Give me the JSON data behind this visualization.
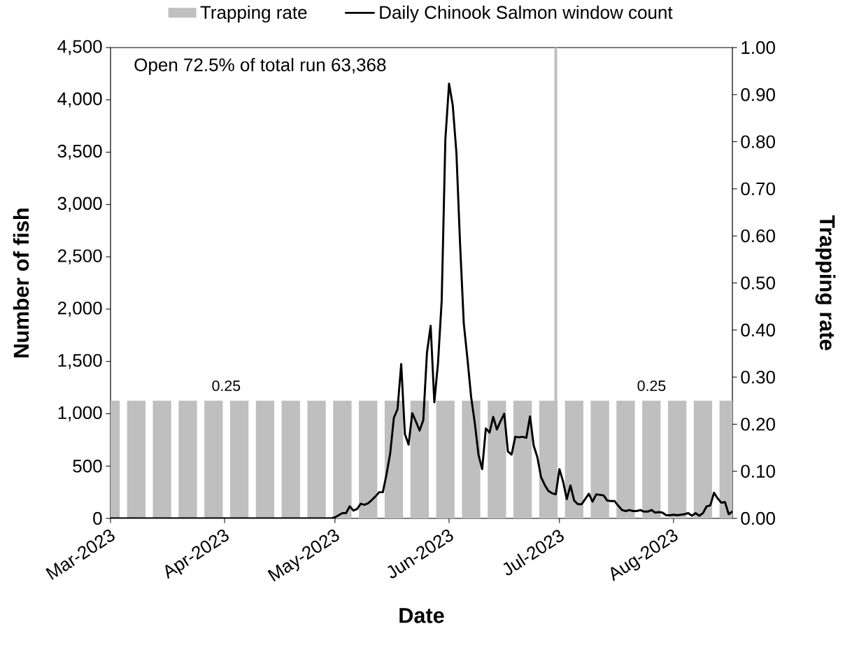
{
  "chart_data": {
    "type": "line",
    "xlabel": "Date",
    "ylabel": "Number of fish",
    "y2label": "Trapping rate",
    "annotations": [
      "Open 72.5% of total run 63,368",
      "0.25",
      "0.25"
    ],
    "x": [
      "2023-03-01",
      "2023-03-02",
      "2023-03-03",
      "2023-03-04",
      "2023-03-05",
      "2023-03-06",
      "2023-03-07",
      "2023-03-08",
      "2023-03-09",
      "2023-03-10",
      "2023-03-11",
      "2023-03-12",
      "2023-03-13",
      "2023-03-14",
      "2023-03-15",
      "2023-03-16",
      "2023-03-17",
      "2023-03-18",
      "2023-03-19",
      "2023-03-20",
      "2023-03-21",
      "2023-03-22",
      "2023-03-23",
      "2023-03-24",
      "2023-03-25",
      "2023-03-26",
      "2023-03-27",
      "2023-03-28",
      "2023-03-29",
      "2023-03-30",
      "2023-03-31",
      "2023-04-01",
      "2023-04-02",
      "2023-04-03",
      "2023-04-04",
      "2023-04-05",
      "2023-04-06",
      "2023-04-07",
      "2023-04-08",
      "2023-04-09",
      "2023-04-10",
      "2023-04-11",
      "2023-04-12",
      "2023-04-13",
      "2023-04-14",
      "2023-04-15",
      "2023-04-16",
      "2023-04-17",
      "2023-04-18",
      "2023-04-19",
      "2023-04-20",
      "2023-04-21",
      "2023-04-22",
      "2023-04-23",
      "2023-04-24",
      "2023-04-25",
      "2023-04-26",
      "2023-04-27",
      "2023-04-28",
      "2023-04-29",
      "2023-04-30",
      "2023-05-01",
      "2023-05-02",
      "2023-05-03",
      "2023-05-04",
      "2023-05-05",
      "2023-05-06",
      "2023-05-07",
      "2023-05-08",
      "2023-05-09",
      "2023-05-10",
      "2023-05-11",
      "2023-05-12",
      "2023-05-13",
      "2023-05-14",
      "2023-05-15",
      "2023-05-16",
      "2023-05-17",
      "2023-05-18",
      "2023-05-19",
      "2023-05-20",
      "2023-05-21",
      "2023-05-22",
      "2023-05-23",
      "2023-05-24",
      "2023-05-25",
      "2023-05-26",
      "2023-05-27",
      "2023-05-28",
      "2023-05-29",
      "2023-05-30",
      "2023-05-31",
      "2023-06-01",
      "2023-06-02",
      "2023-06-03",
      "2023-06-04",
      "2023-06-05",
      "2023-06-06",
      "2023-06-07",
      "2023-06-08",
      "2023-06-09",
      "2023-06-10",
      "2023-06-11",
      "2023-06-12",
      "2023-06-13",
      "2023-06-14",
      "2023-06-15",
      "2023-06-16",
      "2023-06-17",
      "2023-06-18",
      "2023-06-19",
      "2023-06-20",
      "2023-06-21",
      "2023-06-22",
      "2023-06-23",
      "2023-06-24",
      "2023-06-25",
      "2023-06-26",
      "2023-06-27",
      "2023-06-28",
      "2023-06-29",
      "2023-06-30",
      "2023-07-01",
      "2023-07-02",
      "2023-07-03",
      "2023-07-04",
      "2023-07-05",
      "2023-07-06",
      "2023-07-07",
      "2023-07-08",
      "2023-07-09",
      "2023-07-10",
      "2023-07-11",
      "2023-07-12",
      "2023-07-13",
      "2023-07-14",
      "2023-07-15",
      "2023-07-16",
      "2023-07-17",
      "2023-07-18",
      "2023-07-19",
      "2023-07-20",
      "2023-07-21",
      "2023-07-22",
      "2023-07-23",
      "2023-07-24",
      "2023-07-25",
      "2023-07-26",
      "2023-07-27",
      "2023-07-28",
      "2023-07-29",
      "2023-07-30",
      "2023-07-31",
      "2023-08-01",
      "2023-08-02",
      "2023-08-03",
      "2023-08-04",
      "2023-08-05",
      "2023-08-06",
      "2023-08-07",
      "2023-08-08",
      "2023-08-09",
      "2023-08-10",
      "2023-08-11",
      "2023-08-12",
      "2023-08-13",
      "2023-08-14",
      "2023-08-15",
      "2023-08-16",
      "2023-08-17"
    ],
    "series": [
      {
        "name": "Trapping rate",
        "type": "bar",
        "axis": "y2",
        "color": "#bfbfbf",
        "x": [
          "2023-03-01",
          "2023-03-08",
          "2023-03-15",
          "2023-03-22",
          "2023-03-29",
          "2023-04-05",
          "2023-04-12",
          "2023-04-19",
          "2023-04-26",
          "2023-05-03",
          "2023-05-10",
          "2023-05-17",
          "2023-05-24",
          "2023-05-31",
          "2023-06-07",
          "2023-06-14",
          "2023-06-21",
          "2023-06-28",
          "2023-07-05",
          "2023-07-12",
          "2023-07-19",
          "2023-07-26",
          "2023-08-02",
          "2023-08-09",
          "2023-08-16"
        ],
        "values": [
          0.25,
          0.25,
          0.25,
          0.25,
          0.25,
          0.25,
          0.25,
          0.25,
          0.25,
          0.25,
          0.25,
          0.25,
          0.25,
          0.25,
          0.25,
          0.25,
          0.25,
          0.25,
          0.25,
          0.25,
          0.25,
          0.25,
          0.25,
          0.25,
          0.25
        ]
      },
      {
        "name": "Daily Chinook Salmon window count",
        "color": "#000000",
        "values": [
          0,
          0,
          0,
          0,
          0,
          0,
          0,
          0,
          0,
          0,
          0,
          0,
          0,
          0,
          0,
          0,
          0,
          0,
          0,
          0,
          0,
          0,
          0,
          0,
          0,
          0,
          0,
          0,
          0,
          0,
          0,
          0,
          0,
          0,
          0,
          0,
          0,
          0,
          0,
          0,
          0,
          0,
          0,
          0,
          0,
          0,
          0,
          0,
          0,
          0,
          0,
          0,
          0,
          0,
          0,
          0,
          0,
          0,
          0,
          0,
          0,
          10,
          30,
          50,
          50,
          115,
          75,
          90,
          140,
          130,
          145,
          175,
          210,
          250,
          250,
          420,
          620,
          960,
          1045,
          1475,
          805,
          705,
          1005,
          925,
          840,
          940,
          1585,
          1840,
          1110,
          1485,
          2080,
          3625,
          4155,
          3950,
          3495,
          2620,
          1865,
          1525,
          1160,
          910,
          610,
          470,
          860,
          820,
          970,
          850,
          930,
          1000,
          640,
          610,
          780,
          775,
          780,
          770,
          975,
          695,
          585,
          395,
          320,
          262,
          240,
          230,
          470,
          350,
          185,
          315,
          170,
          135,
          135,
          185,
          235,
          160,
          230,
          225,
          220,
          170,
          165,
          165,
          120,
          80,
          70,
          80,
          70,
          70,
          80,
          65,
          65,
          80,
          55,
          60,
          55,
          30,
          30,
          35,
          30,
          35,
          40,
          50,
          25,
          50,
          25,
          50,
          115,
          125,
          245,
          190,
          150,
          155,
          40,
          65
        ]
      }
    ],
    "ref_lines": [
      {
        "axis": "x",
        "value": "2023-06-30",
        "color": "#bfbfbf"
      }
    ],
    "xlim": [
      "2023-03-01",
      "2023-08-17"
    ],
    "xticks": [
      {
        "value": "2023-03-01",
        "label": "Mar-2023"
      },
      {
        "value": "2023-04-01",
        "label": "Apr-2023"
      },
      {
        "value": "2023-05-01",
        "label": "May-2023"
      },
      {
        "value": "2023-06-01",
        "label": "Jun-2023"
      },
      {
        "value": "2023-07-01",
        "label": "Jul-2023"
      },
      {
        "value": "2023-08-01",
        "label": "Aug-2023"
      }
    ],
    "ylim": [
      0,
      4500
    ],
    "yticks": [
      0,
      500,
      {
        "value": 1000,
        "label": "1,000"
      },
      {
        "value": 1500,
        "label": "1,500"
      },
      {
        "value": 2000,
        "label": "2,000"
      },
      {
        "value": 2500,
        "label": "2,500"
      },
      {
        "value": 3000,
        "label": "3,000"
      },
      {
        "value": 3500,
        "label": "3,500"
      },
      {
        "value": 4000,
        "label": "4,000"
      },
      {
        "value": 4500,
        "label": "4,500"
      }
    ],
    "y2lim": [
      0,
      1
    ],
    "y2ticks": [
      {
        "value": 0,
        "label": "0.00"
      },
      {
        "value": 0.1,
        "label": "0.10"
      },
      {
        "value": 0.2,
        "label": "0.20"
      },
      {
        "value": 0.3,
        "label": "0.30"
      },
      {
        "value": 0.4,
        "label": "0.40"
      },
      {
        "value": 0.5,
        "label": "0.50"
      },
      {
        "value": 0.6,
        "label": "0.60"
      },
      {
        "value": 0.7,
        "label": "0.70"
      },
      {
        "value": 0.8,
        "label": "0.80"
      },
      {
        "value": 0.9,
        "label": "0.90"
      },
      {
        "value": 1,
        "label": "1.00"
      }
    ],
    "legend": "top"
  }
}
